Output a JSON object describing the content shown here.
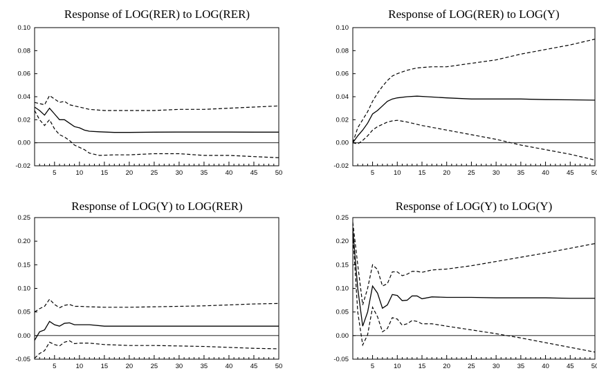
{
  "chart_data": [
    {
      "type": "line",
      "title": "Response of LOG(RER) to LOG(RER)",
      "xlim": [
        1,
        50
      ],
      "ylim": [
        -0.02,
        0.1
      ],
      "yticks": [
        "0.10",
        "0.08",
        "0.06",
        "0.04",
        "0.02",
        "0.00",
        "-0.02"
      ],
      "yticks_values": [
        0.1,
        0.08,
        0.06,
        0.04,
        0.02,
        0.0,
        -0.02
      ],
      "xticks": [
        5,
        10,
        15,
        20,
        25,
        30,
        35,
        40,
        45,
        50
      ],
      "zero_line": true,
      "series": [
        {
          "style": "solid",
          "points": [
            [
              1,
              0.031
            ],
            [
              2,
              0.028
            ],
            [
              3,
              0.024
            ],
            [
              4,
              0.03
            ],
            [
              5,
              0.025
            ],
            [
              6,
              0.02
            ],
            [
              7,
              0.02
            ],
            [
              8,
              0.017
            ],
            [
              9,
              0.014
            ],
            [
              10,
              0.013
            ],
            [
              11,
              0.011
            ],
            [
              12,
              0.01
            ],
            [
              14,
              0.0095
            ],
            [
              17,
              0.009
            ],
            [
              20,
              0.009
            ],
            [
              25,
              0.0092
            ],
            [
              30,
              0.0093
            ],
            [
              35,
              0.0093
            ],
            [
              40,
              0.0093
            ],
            [
              45,
              0.0092
            ],
            [
              50,
              0.0092
            ]
          ]
        },
        {
          "style": "dashed",
          "points": [
            [
              1,
              0.035
            ],
            [
              2,
              0.034
            ],
            [
              3,
              0.033
            ],
            [
              4,
              0.041
            ],
            [
              5,
              0.038
            ],
            [
              6,
              0.035
            ],
            [
              7,
              0.036
            ],
            [
              8,
              0.033
            ],
            [
              9,
              0.032
            ],
            [
              10,
              0.031
            ],
            [
              12,
              0.029
            ],
            [
              15,
              0.028
            ],
            [
              20,
              0.028
            ],
            [
              25,
              0.028
            ],
            [
              30,
              0.029
            ],
            [
              35,
              0.029
            ],
            [
              40,
              0.03
            ],
            [
              45,
              0.031
            ],
            [
              50,
              0.032
            ]
          ]
        },
        {
          "style": "dashed",
          "points": [
            [
              1,
              0.028
            ],
            [
              2,
              0.02
            ],
            [
              3,
              0.015
            ],
            [
              4,
              0.02
            ],
            [
              5,
              0.012
            ],
            [
              6,
              0.007
            ],
            [
              7,
              0.005
            ],
            [
              8,
              0.002
            ],
            [
              9,
              -0.002
            ],
            [
              10,
              -0.004
            ],
            [
              11,
              -0.006
            ],
            [
              12,
              -0.009
            ],
            [
              14,
              -0.011
            ],
            [
              17,
              -0.0105
            ],
            [
              20,
              -0.0105
            ],
            [
              25,
              -0.0095
            ],
            [
              30,
              -0.0095
            ],
            [
              35,
              -0.011
            ],
            [
              40,
              -0.011
            ],
            [
              45,
              -0.012
            ],
            [
              50,
              -0.013
            ]
          ]
        }
      ]
    },
    {
      "type": "line",
      "title": "Response of LOG(RER) to LOG(Y)",
      "xlim": [
        1,
        50
      ],
      "ylim": [
        -0.02,
        0.1
      ],
      "yticks": [
        "0.10",
        "0.08",
        "0.06",
        "0.04",
        "0.02",
        "0.00",
        "-0.02"
      ],
      "yticks_values": [
        0.1,
        0.08,
        0.06,
        0.04,
        0.02,
        0.0,
        -0.02
      ],
      "xticks": [
        5,
        10,
        15,
        20,
        25,
        30,
        35,
        40,
        45,
        50
      ],
      "zero_line": true,
      "series": [
        {
          "style": "solid",
          "points": [
            [
              1,
              0.0
            ],
            [
              2,
              0.006
            ],
            [
              3,
              0.011
            ],
            [
              4,
              0.017
            ],
            [
              5,
              0.025
            ],
            [
              6,
              0.028
            ],
            [
              7,
              0.032
            ],
            [
              8,
              0.036
            ],
            [
              9,
              0.038
            ],
            [
              10,
              0.039
            ],
            [
              12,
              0.04
            ],
            [
              14,
              0.0405
            ],
            [
              16,
              0.04
            ],
            [
              20,
              0.039
            ],
            [
              25,
              0.038
            ],
            [
              30,
              0.038
            ],
            [
              35,
              0.038
            ],
            [
              40,
              0.0375
            ],
            [
              45,
              0.0373
            ],
            [
              50,
              0.037
            ]
          ]
        },
        {
          "style": "dashed",
          "points": [
            [
              1,
              0.0
            ],
            [
              2,
              0.013
            ],
            [
              3,
              0.02
            ],
            [
              4,
              0.027
            ],
            [
              5,
              0.036
            ],
            [
              6,
              0.043
            ],
            [
              7,
              0.049
            ],
            [
              8,
              0.054
            ],
            [
              9,
              0.058
            ],
            [
              10,
              0.06
            ],
            [
              12,
              0.063
            ],
            [
              14,
              0.065
            ],
            [
              17,
              0.066
            ],
            [
              20,
              0.066
            ],
            [
              25,
              0.069
            ],
            [
              30,
              0.072
            ],
            [
              35,
              0.077
            ],
            [
              40,
              0.081
            ],
            [
              45,
              0.085
            ],
            [
              50,
              0.09
            ]
          ]
        },
        {
          "style": "dashed",
          "points": [
            [
              1,
              0.0
            ],
            [
              2,
              -0.001
            ],
            [
              3,
              0.002
            ],
            [
              4,
              0.006
            ],
            [
              5,
              0.011
            ],
            [
              6,
              0.014
            ],
            [
              7,
              0.016
            ],
            [
              8,
              0.018
            ],
            [
              9,
              0.019
            ],
            [
              10,
              0.0195
            ],
            [
              12,
              0.018
            ],
            [
              15,
              0.015
            ],
            [
              20,
              0.011
            ],
            [
              25,
              0.007
            ],
            [
              30,
              0.003
            ],
            [
              35,
              -0.002
            ],
            [
              40,
              -0.006
            ],
            [
              45,
              -0.01
            ],
            [
              50,
              -0.015
            ]
          ]
        }
      ]
    },
    {
      "type": "line",
      "title": "Response of LOG(Y) to LOG(RER)",
      "xlim": [
        1,
        50
      ],
      "ylim": [
        -0.05,
        0.25
      ],
      "yticks": [
        "0.25",
        "0.20",
        "0.15",
        "0.10",
        "0.05",
        "0.00",
        "-0.05"
      ],
      "yticks_values": [
        0.25,
        0.2,
        0.15,
        0.1,
        0.05,
        0.0,
        -0.05
      ],
      "xticks": [
        5,
        10,
        15,
        20,
        25,
        30,
        35,
        40,
        45,
        50
      ],
      "zero_line": true,
      "series": [
        {
          "style": "solid",
          "points": [
            [
              1,
              -0.01
            ],
            [
              2,
              0.008
            ],
            [
              3,
              0.012
            ],
            [
              4,
              0.03
            ],
            [
              5,
              0.023
            ],
            [
              6,
              0.02
            ],
            [
              7,
              0.026
            ],
            [
              8,
              0.027
            ],
            [
              9,
              0.023
            ],
            [
              10,
              0.023
            ],
            [
              12,
              0.023
            ],
            [
              15,
              0.02
            ],
            [
              20,
              0.02
            ],
            [
              25,
              0.02
            ],
            [
              30,
              0.02
            ],
            [
              35,
              0.02
            ],
            [
              40,
              0.02
            ],
            [
              45,
              0.02
            ],
            [
              50,
              0.02
            ]
          ]
        },
        {
          "style": "dashed",
          "points": [
            [
              1,
              0.05
            ],
            [
              2,
              0.057
            ],
            [
              3,
              0.062
            ],
            [
              4,
              0.077
            ],
            [
              5,
              0.066
            ],
            [
              6,
              0.059
            ],
            [
              7,
              0.064
            ],
            [
              8,
              0.066
            ],
            [
              9,
              0.062
            ],
            [
              10,
              0.062
            ],
            [
              12,
              0.061
            ],
            [
              15,
              0.06
            ],
            [
              20,
              0.06
            ],
            [
              25,
              0.061
            ],
            [
              30,
              0.062
            ],
            [
              35,
              0.063
            ],
            [
              40,
              0.065
            ],
            [
              45,
              0.067
            ],
            [
              50,
              0.068
            ]
          ]
        },
        {
          "style": "dashed",
          "points": [
            [
              1,
              -0.048
            ],
            [
              2,
              -0.038
            ],
            [
              3,
              -0.032
            ],
            [
              4,
              -0.014
            ],
            [
              5,
              -0.019
            ],
            [
              6,
              -0.022
            ],
            [
              7,
              -0.014
            ],
            [
              8,
              -0.011
            ],
            [
              9,
              -0.017
            ],
            [
              10,
              -0.016
            ],
            [
              12,
              -0.016
            ],
            [
              15,
              -0.019
            ],
            [
              20,
              -0.021
            ],
            [
              25,
              -0.021
            ],
            [
              30,
              -0.022
            ],
            [
              35,
              -0.023
            ],
            [
              40,
              -0.025
            ],
            [
              45,
              -0.027
            ],
            [
              50,
              -0.028
            ]
          ]
        }
      ]
    },
    {
      "type": "line",
      "title": "Response of LOG(Y) to LOG(Y)",
      "xlim": [
        1,
        50
      ],
      "ylim": [
        -0.05,
        0.25
      ],
      "yticks": [
        "0.25",
        "0.20",
        "0.15",
        "0.10",
        "0.05",
        "0.00",
        "-0.05"
      ],
      "yticks_values": [
        0.25,
        0.2,
        0.15,
        0.1,
        0.05,
        0.0,
        -0.05
      ],
      "xticks": [
        5,
        10,
        15,
        20,
        25,
        30,
        35,
        40,
        45,
        50
      ],
      "zero_line": true,
      "series": [
        {
          "style": "solid",
          "points": [
            [
              1,
              0.225
            ],
            [
              2,
              0.1
            ],
            [
              3,
              0.02
            ],
            [
              4,
              0.05
            ],
            [
              5,
              0.105
            ],
            [
              6,
              0.09
            ],
            [
              7,
              0.058
            ],
            [
              8,
              0.065
            ],
            [
              9,
              0.087
            ],
            [
              10,
              0.085
            ],
            [
              11,
              0.074
            ],
            [
              12,
              0.075
            ],
            [
              13,
              0.084
            ],
            [
              14,
              0.084
            ],
            [
              15,
              0.078
            ],
            [
              17,
              0.082
            ],
            [
              20,
              0.081
            ],
            [
              25,
              0.081
            ],
            [
              30,
              0.08
            ],
            [
              35,
              0.08
            ],
            [
              40,
              0.08
            ],
            [
              45,
              0.079
            ],
            [
              50,
              0.079
            ]
          ]
        },
        {
          "style": "dashed",
          "points": [
            [
              1,
              0.24
            ],
            [
              2,
              0.15
            ],
            [
              3,
              0.065
            ],
            [
              4,
              0.1
            ],
            [
              5,
              0.15
            ],
            [
              6,
              0.14
            ],
            [
              7,
              0.105
            ],
            [
              8,
              0.11
            ],
            [
              9,
              0.135
            ],
            [
              10,
              0.135
            ],
            [
              11,
              0.127
            ],
            [
              12,
              0.13
            ],
            [
              13,
              0.136
            ],
            [
              14,
              0.136
            ],
            [
              15,
              0.134
            ],
            [
              17,
              0.139
            ],
            [
              20,
              0.141
            ],
            [
              25,
              0.148
            ],
            [
              30,
              0.157
            ],
            [
              35,
              0.166
            ],
            [
              40,
              0.175
            ],
            [
              45,
              0.185
            ],
            [
              50,
              0.195
            ]
          ]
        },
        {
          "style": "dashed",
          "points": [
            [
              1,
              0.215
            ],
            [
              2,
              0.05
            ],
            [
              3,
              -0.02
            ],
            [
              4,
              0.002
            ],
            [
              5,
              0.06
            ],
            [
              6,
              0.04
            ],
            [
              7,
              0.008
            ],
            [
              8,
              0.015
            ],
            [
              9,
              0.038
            ],
            [
              10,
              0.035
            ],
            [
              11,
              0.022
            ],
            [
              12,
              0.025
            ],
            [
              13,
              0.032
            ],
            [
              14,
              0.03
            ],
            [
              15,
              0.025
            ],
            [
              17,
              0.025
            ],
            [
              20,
              0.02
            ],
            [
              25,
              0.012
            ],
            [
              30,
              0.004
            ],
            [
              35,
              -0.005
            ],
            [
              40,
              -0.015
            ],
            [
              45,
              -0.025
            ],
            [
              50,
              -0.035
            ]
          ]
        }
      ]
    }
  ]
}
